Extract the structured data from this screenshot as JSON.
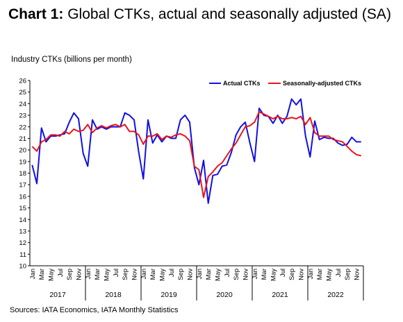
{
  "title_prefix": "Chart 1:",
  "title_rest": " Global CTKs, actual and seasonally adjusted (SA)",
  "source": "Sources: IATA Economics, IATA Monthly Statistics",
  "colors": {
    "actual": "#1010e6",
    "sa": "#e8141b"
  },
  "chart_data": {
    "type": "line",
    "ylabel": "Industry CTKs (billions per month)",
    "ylim": [
      10,
      26
    ],
    "yticks": [
      10,
      11,
      12,
      13,
      14,
      15,
      16,
      17,
      18,
      19,
      20,
      21,
      22,
      23,
      24,
      25,
      26
    ],
    "grid": false,
    "legend_position": "top-right",
    "month_labels": [
      "Jan",
      "Mar",
      "May",
      "Jul",
      "Sep",
      "Nov"
    ],
    "years": [
      "2017",
      "2018",
      "2019",
      "2020",
      "2021",
      "2022"
    ],
    "series": [
      {
        "name": "Actual CTKs",
        "values": [
          18.7,
          17.1,
          21.9,
          20.7,
          21.2,
          21.2,
          21.3,
          21.4,
          22.4,
          23.2,
          22.7,
          19.7,
          18.6,
          22.6,
          21.8,
          22.0,
          21.8,
          22.0,
          22.0,
          22.0,
          23.2,
          23.0,
          22.6,
          19.8,
          17.5,
          22.6,
          20.6,
          21.3,
          20.7,
          21.2,
          21.0,
          21.0,
          22.6,
          23.0,
          22.4,
          18.5,
          17.0,
          19.1,
          15.4,
          17.8,
          17.9,
          18.6,
          18.7,
          19.8,
          21.3,
          22.0,
          22.4,
          20.6,
          19.0,
          23.6,
          23.0,
          22.9,
          22.3,
          23.0,
          22.3,
          22.9,
          24.4,
          23.9,
          24.4,
          21.2,
          19.4,
          22.5,
          20.9,
          21.1,
          21.0,
          21.0,
          20.6,
          20.4,
          20.5,
          21.1,
          20.7,
          20.7
        ]
      },
      {
        "name": "Seasonally-adjusted CTKs",
        "values": [
          20.3,
          19.9,
          20.7,
          20.9,
          21.3,
          21.3,
          21.2,
          21.6,
          21.4,
          21.8,
          21.6,
          21.7,
          22.2,
          21.5,
          21.9,
          22.1,
          21.9,
          22.1,
          22.2,
          22.0,
          22.2,
          21.6,
          21.6,
          21.3,
          20.5,
          21.2,
          21.2,
          21.4,
          20.9,
          21.2,
          21.1,
          21.3,
          21.4,
          21.2,
          20.8,
          18.6,
          18.3,
          15.9,
          17.7,
          18.1,
          18.6,
          18.9,
          19.5,
          20.1,
          20.6,
          21.3,
          22.0,
          22.1,
          22.4,
          23.3,
          23.1,
          22.9,
          22.7,
          22.9,
          22.7,
          22.7,
          22.8,
          22.7,
          22.9,
          22.2,
          22.8,
          21.5,
          21.2,
          21.2,
          21.2,
          20.9,
          20.8,
          20.7,
          20.3,
          19.9,
          19.6,
          19.5
        ]
      }
    ]
  }
}
